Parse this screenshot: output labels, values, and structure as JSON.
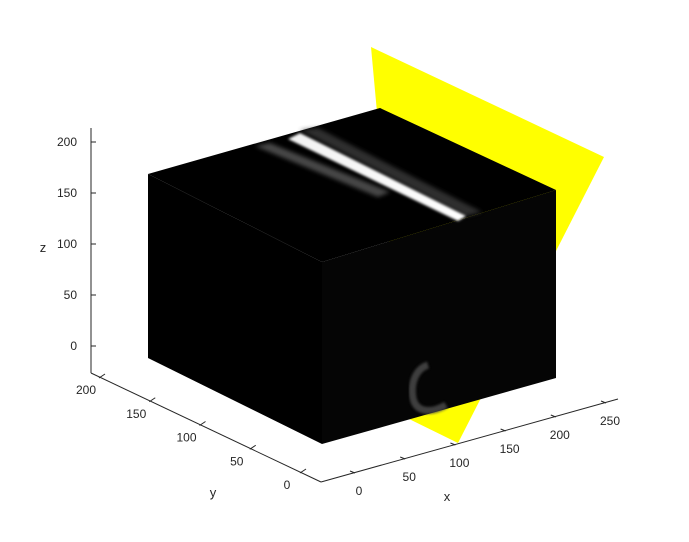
{
  "chart_data": {
    "type": "volume-slice-3d",
    "title": "",
    "xlabel": "x",
    "ylabel": "y",
    "zlabel": "z",
    "xlim": [
      0,
      250
    ],
    "ylim": [
      0,
      200
    ],
    "zlim": [
      0,
      200
    ],
    "x_ticks": [
      "0",
      "50",
      "100",
      "150",
      "200",
      "250"
    ],
    "y_ticks": [
      "0",
      "50",
      "100",
      "150",
      "200"
    ],
    "z_ticks": [
      "0",
      "50",
      "100",
      "150",
      "200"
    ],
    "grid": false,
    "colors": {
      "volume": "#000000",
      "slice_plane": "#ffff00",
      "streak": "#ffffff",
      "axis": "#262626"
    }
  }
}
